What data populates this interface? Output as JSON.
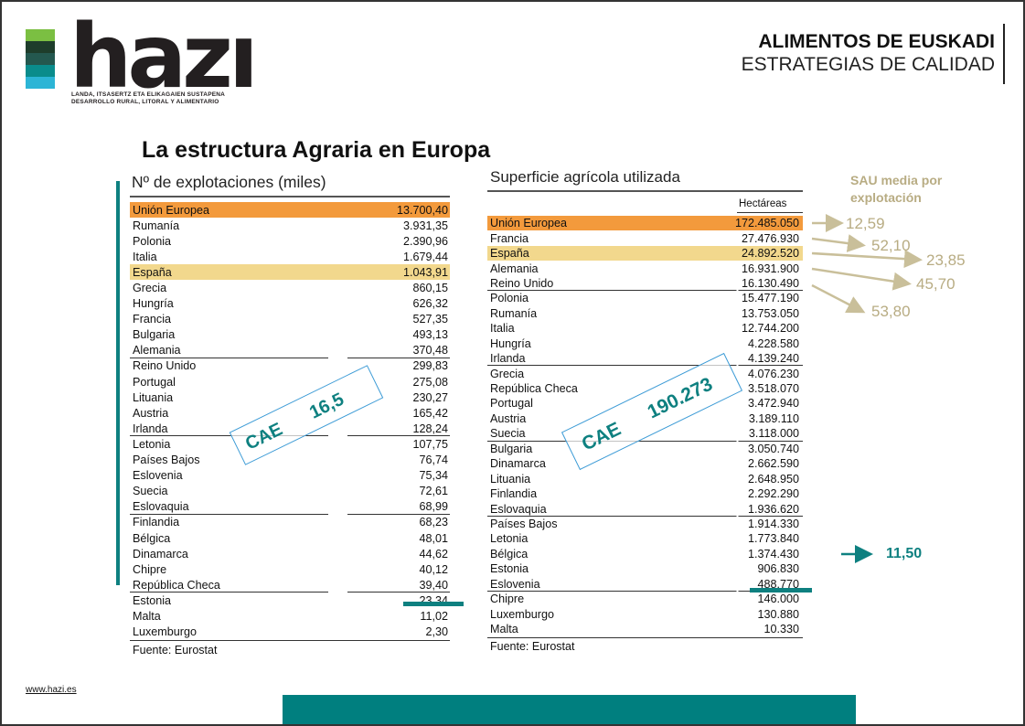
{
  "header": {
    "line1": "ALIMENTOS DE EUSKADI",
    "line2": "ESTRATEGIAS DE CALIDAD"
  },
  "logo": {
    "word": "hazı",
    "sub1": "LANDA, ITSASERTZ ETA ELIKAGAIEN SUSTAPENA",
    "sub2": "DESARROLLO RURAL, LITORAL Y ALIMENTARIO",
    "colors": [
      "#7bbf42",
      "#1e3d2b",
      "#24584f",
      "#0a8c8c",
      "#2cb5d6"
    ]
  },
  "title": "La estructura Agraria en Europa",
  "table1": {
    "title": "Nº de explotaciones (miles)",
    "rows": [
      {
        "name": "Unión Europea",
        "value": "13.700,40"
      },
      {
        "name": "Rumanía",
        "value": "3.931,35"
      },
      {
        "name": "Polonia",
        "value": "2.390,96"
      },
      {
        "name": "Italia",
        "value": "1.679,44"
      },
      {
        "name": "España",
        "value": "1.043,91"
      },
      {
        "name": "Grecia",
        "value": "860,15"
      },
      {
        "name": "Hungría",
        "value": "626,32"
      },
      {
        "name": "Francia",
        "value": "527,35"
      },
      {
        "name": "Bulgaria",
        "value": "493,13"
      },
      {
        "name": "Alemania",
        "value": "370,48"
      },
      {
        "name": "Reino Unido",
        "value": "299,83"
      },
      {
        "name": "Portugal",
        "value": "275,08"
      },
      {
        "name": "Lituania",
        "value": "230,27"
      },
      {
        "name": "Austria",
        "value": "165,42"
      },
      {
        "name": "Irlanda",
        "value": "128,24"
      },
      {
        "name": "Letonia",
        "value": "107,75"
      },
      {
        "name": "Países Bajos",
        "value": "76,74"
      },
      {
        "name": "Eslovenia",
        "value": "75,34"
      },
      {
        "name": "Suecia",
        "value": "72,61"
      },
      {
        "name": "Eslovaquia",
        "value": "68,99"
      },
      {
        "name": "Finlandia",
        "value": "68,23"
      },
      {
        "name": "Bélgica",
        "value": "48,01"
      },
      {
        "name": "Dinamarca",
        "value": "44,62"
      },
      {
        "name": "Chipre",
        "value": "40,12"
      },
      {
        "name": "República Checa",
        "value": "39,40"
      },
      {
        "name": "Estonia",
        "value": "23,34"
      },
      {
        "name": "Malta",
        "value": "11,02"
      },
      {
        "name": "Luxemburgo",
        "value": "2,30"
      }
    ],
    "source": "Fuente: Eurostat",
    "cae_label": "CAE",
    "cae_value": "16,5"
  },
  "table2": {
    "title": "Superficie agrícola utilizada",
    "unit": "Hectáreas",
    "rows": [
      {
        "name": "Unión Europea",
        "value": "172.485.050"
      },
      {
        "name": "Francia",
        "value": "27.476.930"
      },
      {
        "name": "España",
        "value": "24.892.520"
      },
      {
        "name": "Alemania",
        "value": "16.931.900"
      },
      {
        "name": "Reino Unido",
        "value": "16.130.490"
      },
      {
        "name": "Polonia",
        "value": "15.477.190"
      },
      {
        "name": "Rumanía",
        "value": "13.753.050"
      },
      {
        "name": "Italia",
        "value": "12.744.200"
      },
      {
        "name": "Hungría",
        "value": "4.228.580"
      },
      {
        "name": "Irlanda",
        "value": "4.139.240"
      },
      {
        "name": "Grecia",
        "value": "4.076.230"
      },
      {
        "name": "República Checa",
        "value": "3.518.070"
      },
      {
        "name": "Portugal",
        "value": "3.472.940"
      },
      {
        "name": "Austria",
        "value": "3.189.110"
      },
      {
        "name": "Suecia",
        "value": "3.118.000"
      },
      {
        "name": "Bulgaria",
        "value": "3.050.740"
      },
      {
        "name": "Dinamarca",
        "value": "2.662.590"
      },
      {
        "name": "Lituania",
        "value": "2.648.950"
      },
      {
        "name": "Finlandia",
        "value": "2.292.290"
      },
      {
        "name": "Eslovaquia",
        "value": "1.936.620"
      },
      {
        "name": "Países Bajos",
        "value": "1.914.330"
      },
      {
        "name": "Letonia",
        "value": "1.773.840"
      },
      {
        "name": "Bélgica",
        "value": "1.374.430"
      },
      {
        "name": "Estonia",
        "value": "906.830"
      },
      {
        "name": "Eslovenia",
        "value": "488.770"
      },
      {
        "name": "Chipre",
        "value": "146.000"
      },
      {
        "name": "Luxemburgo",
        "value": "130.880"
      },
      {
        "name": "Malta",
        "value": "10.330"
      }
    ],
    "source": "Fuente: Eurostat",
    "cae_label": "CAE",
    "cae_value": "190.273"
  },
  "sau": {
    "heading1": "SAU media por",
    "heading2": "explotación",
    "values": [
      "12,59",
      "52,10",
      "23,85",
      "45,70",
      "53,80"
    ],
    "last": "11,50",
    "colors": {
      "arrows": "#c9bf9a",
      "text": "#b8ac83",
      "accent": "#0e8080"
    }
  },
  "footer": {
    "url": "www.hazi.es"
  }
}
